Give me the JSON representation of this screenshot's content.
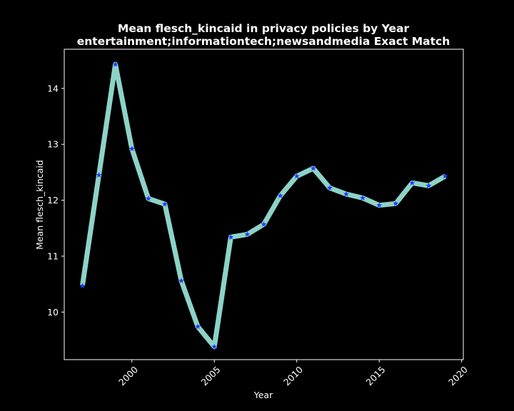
{
  "chart_data": {
    "type": "line",
    "title_line1": "Mean flesch_kincaid in privacy policies by Year",
    "title_line2": "entertainment;informationtech;newsandmedia Exact Match",
    "xlabel": "Year",
    "ylabel": "Mean flesch_kincaid",
    "x": [
      1997,
      1998,
      1999,
      2000,
      2001,
      2002,
      2003,
      2004,
      2005,
      2006,
      2007,
      2008,
      2009,
      2010,
      2011,
      2012,
      2013,
      2014,
      2015,
      2016,
      2017,
      2018,
      2019
    ],
    "values": [
      10.47,
      12.45,
      14.43,
      12.92,
      12.03,
      11.93,
      10.56,
      9.74,
      9.38,
      11.34,
      11.39,
      11.57,
      12.08,
      12.43,
      12.57,
      12.22,
      12.11,
      12.04,
      11.91,
      11.94,
      12.31,
      12.26,
      12.43
    ],
    "xlim": [
      1995.9,
      2020.1
    ],
    "ylim": [
      9.15,
      14.7
    ],
    "xticks": [
      2000,
      2005,
      2010,
      2015,
      2020
    ],
    "yticks": [
      10,
      11,
      12,
      13,
      14
    ],
    "grid": false,
    "line_color": "#8dd3c7",
    "marker_color": "#1f3bff",
    "marker": "star",
    "background": "#000000",
    "axes_color": "#ffffff"
  }
}
